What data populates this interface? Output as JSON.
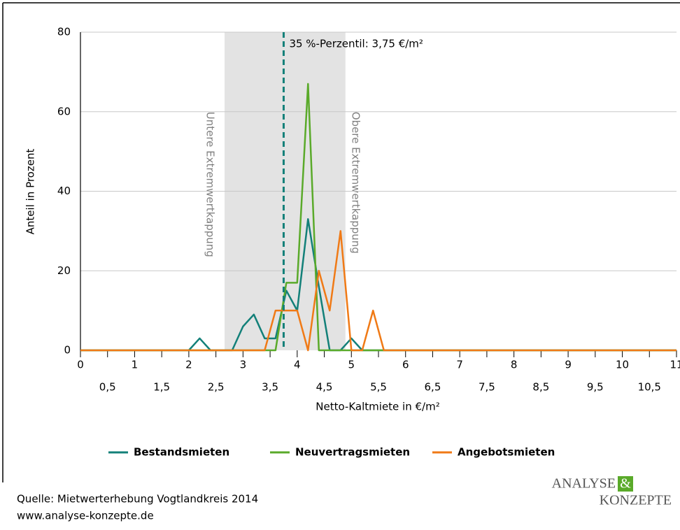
{
  "chart_data": {
    "type": "line",
    "x_label": "Netto-Kaltmiete in €/m²",
    "y_label": "Anteil in Prozent",
    "x": [
      0,
      2.0,
      2.2,
      2.4,
      2.6,
      2.8,
      3.0,
      3.2,
      3.4,
      3.6,
      3.8,
      4.0,
      4.2,
      4.4,
      4.6,
      4.8,
      5.0,
      5.2,
      5.4,
      5.6,
      11
    ],
    "series": [
      {
        "name": "Bestandsmieten",
        "color": "#138079",
        "values": [
          0,
          0,
          3,
          0,
          0,
          0,
          6,
          9,
          3,
          3,
          15,
          10,
          33,
          16,
          0,
          0,
          3,
          0,
          0,
          0,
          0
        ]
      },
      {
        "name": "Neuvertragsmieten",
        "color": "#5aaa2a",
        "values": [
          0,
          0,
          0,
          0,
          0,
          0,
          0,
          0,
          0,
          0,
          17,
          17,
          67,
          0,
          0,
          0,
          0,
          0,
          0,
          0,
          0
        ]
      },
      {
        "name": "Angebotsmieten",
        "color": "#f07a16",
        "values": [
          0,
          0,
          0,
          0,
          0,
          0,
          0,
          0,
          0,
          10,
          10,
          10,
          0,
          20,
          10,
          30,
          0,
          0,
          10,
          0,
          0
        ]
      }
    ],
    "xlim": [
      0,
      11
    ],
    "ylim": [
      0,
      80
    ],
    "yticks": [
      0,
      20,
      40,
      60,
      80
    ],
    "xticks": [
      0,
      1,
      2,
      3,
      4,
      5,
      6,
      7,
      8,
      9,
      10,
      11
    ],
    "xticks_minor": [
      {
        "value": 0.5,
        "label": "0,5"
      },
      {
        "value": 1.5,
        "label": "1,5"
      },
      {
        "value": 2.5,
        "label": "2,5"
      },
      {
        "value": 3.5,
        "label": "3,5"
      },
      {
        "value": 4.5,
        "label": "4,5"
      },
      {
        "value": 5.5,
        "label": "5,5"
      },
      {
        "value": 6.5,
        "label": "6,5"
      },
      {
        "value": 7.5,
        "label": "7,5"
      },
      {
        "value": 8.5,
        "label": "8,5"
      },
      {
        "value": 9.5,
        "label": "9,5"
      },
      {
        "value": 10.5,
        "label": "10,5"
      }
    ],
    "grid": true,
    "band": {
      "from": 2.66,
      "to": 4.89,
      "color": "#e3e3e3",
      "label_left": "Untere Extremwertkappung",
      "label_right": "Obere Extremwertkappung"
    },
    "reference_line": {
      "value": 3.75,
      "label": "35 %-Perzentil: 3,75 €/m²",
      "color": "#138079"
    },
    "legend": "bottom",
    "source": [
      "Quelle: Mietwerterhebung Vogtlandkreis 2014",
      "www.analyse-konzepte.de"
    ],
    "logo": [
      "ANALYSE",
      "&",
      "KONZEPTE"
    ]
  }
}
